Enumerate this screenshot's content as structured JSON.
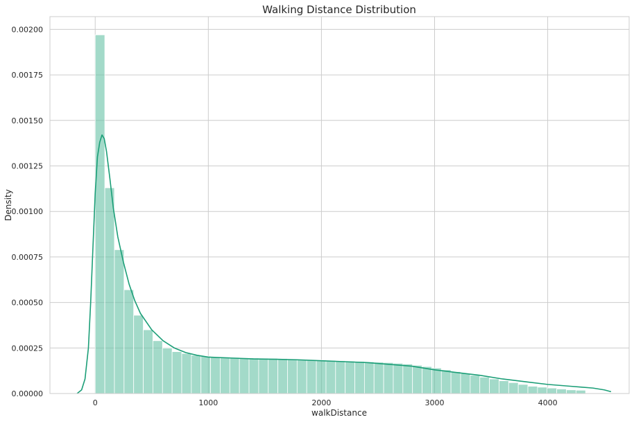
{
  "chart_data": {
    "type": "bar",
    "subtype": "histogram with kde",
    "title": "Walking Distance Distribution",
    "xlabel": "walkDistance",
    "ylabel": "Density",
    "xlim": [
      -400,
      4720
    ],
    "ylim": [
      0,
      0.00207
    ],
    "x_ticks": [
      0,
      1000,
      2000,
      3000,
      4000
    ],
    "x_tick_labels": [
      "0",
      "1000",
      "2000",
      "3000",
      "4000"
    ],
    "y_ticks": [
      0,
      0.00025,
      0.0005,
      0.00075,
      0.001,
      0.00125,
      0.0015,
      0.00175,
      0.002
    ],
    "y_tick_labels": [
      "0.00000",
      "0.00025",
      "0.00050",
      "0.00075",
      "0.00100",
      "0.00125",
      "0.00150",
      "0.00175",
      "0.00200"
    ],
    "grid": true,
    "colors": {
      "bars": "#66c2a5",
      "bar_opacity": 0.6,
      "kde": "#1b9e77",
      "grid": "#cccccc",
      "bar_edge": "#ffffff"
    },
    "bins": {
      "start": 0,
      "width": 85,
      "density": [
        0.00197,
        0.00113,
        0.00079,
        0.00057,
        0.00043,
        0.00035,
        0.00029,
        0.00025,
        0.00023,
        0.00022,
        0.00021,
        0.000205,
        0.0002,
        0.0002,
        0.000198,
        0.000196,
        0.000195,
        0.000194,
        0.000193,
        0.000192,
        0.00019,
        0.000188,
        0.000186,
        0.000184,
        0.000182,
        0.00018,
        0.000178,
        0.000176,
        0.000174,
        0.000172,
        0.00017,
        0.000166,
        0.000162,
        0.000155,
        0.000148,
        0.00014,
        0.00013,
        0.00012,
        0.00011,
        0.0001,
        9e-05,
        8e-05,
        7e-05,
        6e-05,
        5e-05,
        4e-05,
        3.5e-05,
        3e-05,
        2.5e-05,
        2e-05,
        1.8e-05
      ]
    },
    "kde": {
      "x": [
        -160,
        -120,
        -90,
        -60,
        -40,
        -20,
        0,
        20,
        40,
        60,
        80,
        100,
        130,
        160,
        200,
        250,
        300,
        350,
        400,
        500,
        600,
        700,
        800,
        900,
        1000,
        1200,
        1400,
        1600,
        1800,
        2000,
        2200,
        2400,
        2600,
        2800,
        3000,
        3200,
        3400,
        3600,
        3800,
        4000,
        4200,
        4300,
        4400,
        4500,
        4560
      ],
      "y": [
        0,
        2e-05,
        8e-05,
        0.00025,
        0.0005,
        0.0008,
        0.0011,
        0.0013,
        0.00138,
        0.00142,
        0.0014,
        0.00133,
        0.00118,
        0.00102,
        0.00086,
        0.00072,
        0.0006,
        0.00051,
        0.00044,
        0.00035,
        0.00029,
        0.00025,
        0.000225,
        0.00021,
        0.0002,
        0.000195,
        0.00019,
        0.000188,
        0.000185,
        0.00018,
        0.000175,
        0.00017,
        0.00016,
        0.00015,
        0.00013,
        0.000115,
        0.0001,
        8e-05,
        6.5e-05,
        5e-05,
        4e-05,
        3.5e-05,
        3e-05,
        2e-05,
        1e-05
      ]
    }
  }
}
